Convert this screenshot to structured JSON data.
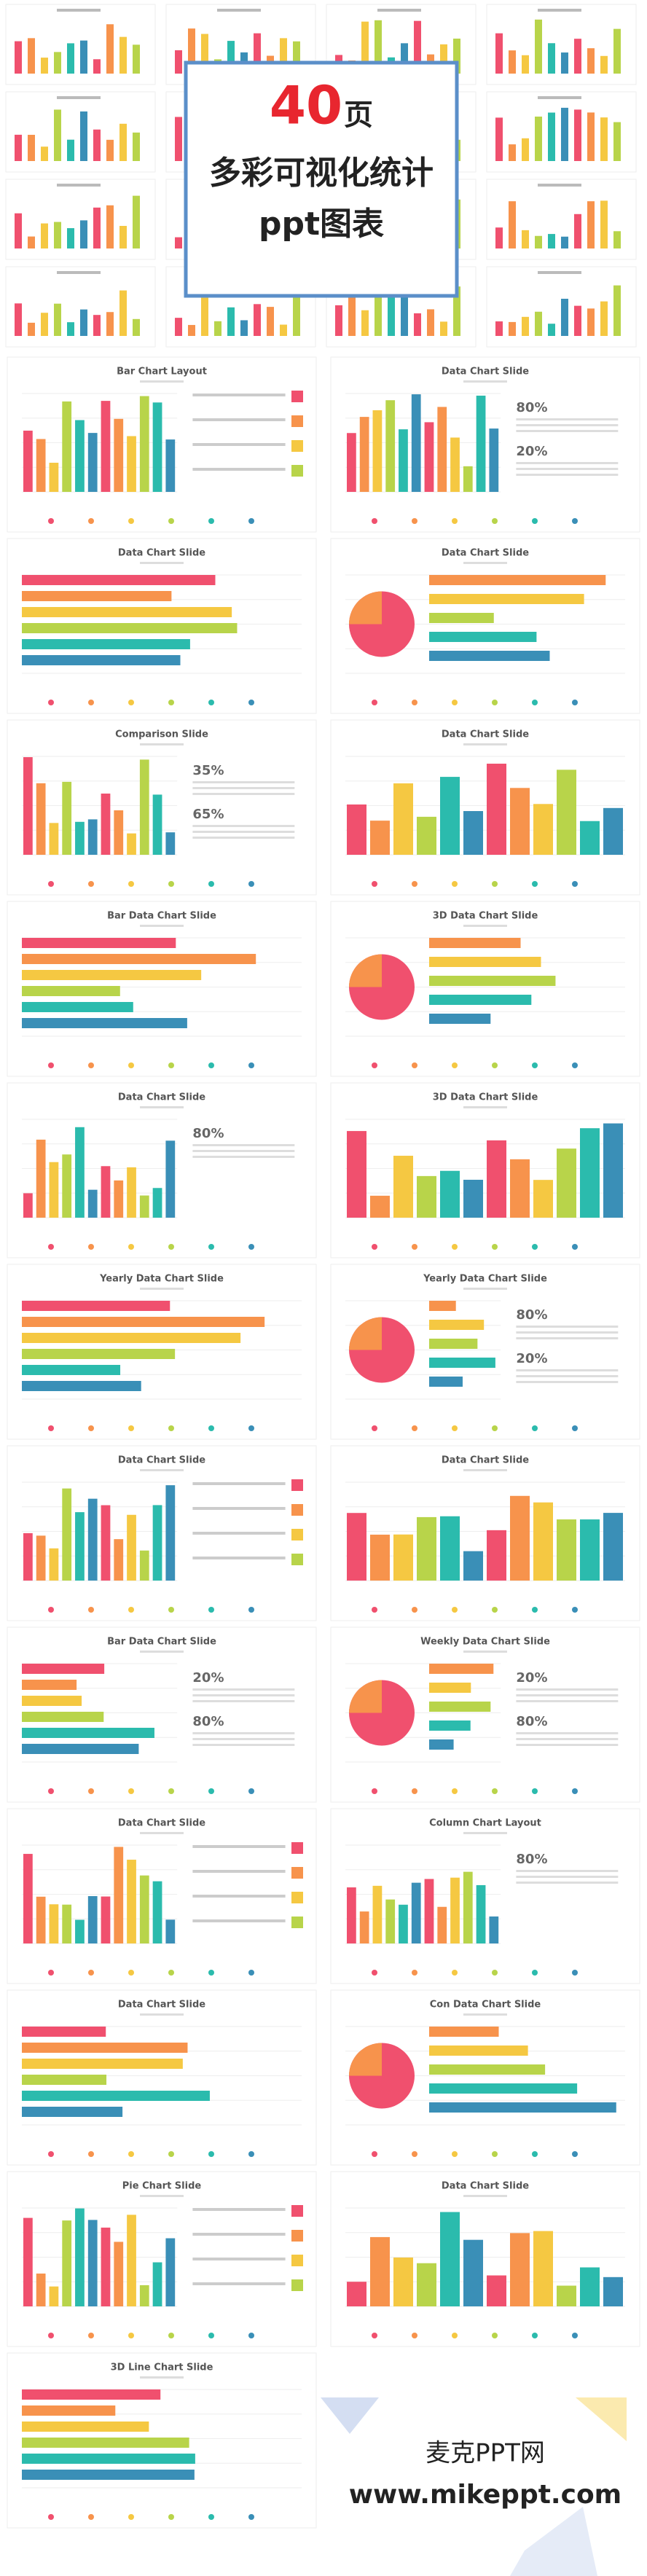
{
  "header": {
    "number": "40",
    "unit": "页",
    "line1": "多彩可视化统计",
    "line2": "ppt图表"
  },
  "slides": [
    {
      "title": "Bar Chart Layout"
    },
    {
      "title": "Data Chart Slide",
      "labels": [
        "80%",
        "20%"
      ]
    },
    {
      "title": "Data Chart Slide"
    },
    {
      "title": "Data Chart Slide"
    },
    {
      "title": "Comparison Slide",
      "labels": [
        "35%",
        "65%"
      ]
    },
    {
      "title": "Data Chart Slide"
    },
    {
      "title": "Bar Data Chart Slide"
    },
    {
      "title": "3D Data Chart Slide"
    },
    {
      "title": "Data Chart Slide",
      "labels": [
        "80%"
      ]
    },
    {
      "title": "3D Data Chart Slide"
    },
    {
      "title": "Yearly Data Chart Slide"
    },
    {
      "title": "Yearly Data Chart Slide",
      "labels": [
        "80%",
        "20%"
      ]
    },
    {
      "title": "Data Chart Slide"
    },
    {
      "title": "Data Chart Slide"
    },
    {
      "title": "Bar Data Chart Slide",
      "labels": [
        "20%",
        "80%"
      ]
    },
    {
      "title": "Weekly Data Chart Slide",
      "labels": [
        "20%",
        "80%"
      ]
    },
    {
      "title": "Data Chart Slide"
    },
    {
      "title": "Column Chart Layout",
      "labels": [
        "80%"
      ]
    },
    {
      "title": "Data Chart Slide"
    },
    {
      "title": "Con Data Chart Slide"
    },
    {
      "title": "Pie Chart Slide"
    },
    {
      "title": "Data Chart Slide"
    },
    {
      "title": "3D Line Chart Slide"
    }
  ],
  "footer": {
    "brand": "麦克PPT网",
    "url": "www.mikeppt.com"
  }
}
